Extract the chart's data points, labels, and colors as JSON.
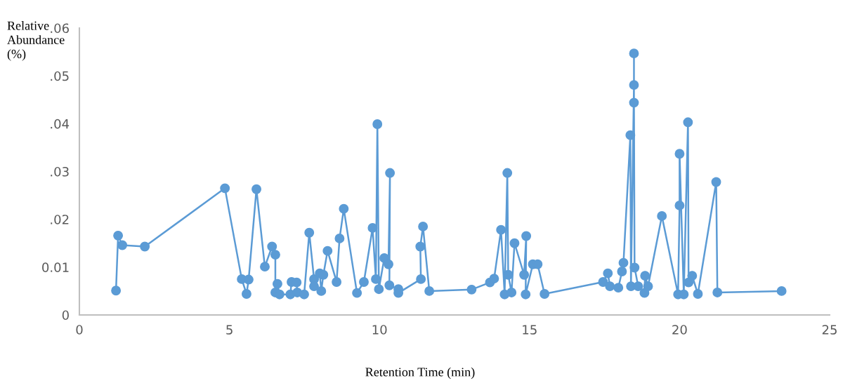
{
  "chart_data": {
    "type": "line",
    "xlabel": "Retention Time (min)",
    "ylabel": "Relative Abundance (%)",
    "x": [
      1.22,
      1.29,
      1.43,
      2.18,
      4.85,
      5.41,
      5.57,
      5.64,
      5.9,
      6.18,
      6.42,
      6.53,
      6.53,
      6.6,
      6.67,
      7.03,
      7.07,
      7.24,
      7.26,
      7.49,
      7.66,
      7.82,
      7.82,
      8.01,
      8.06,
      8.13,
      8.27,
      8.57,
      8.67,
      8.81,
      9.25,
      9.48,
      9.77,
      9.88,
      9.93,
      9.98,
      10.16,
      10.3,
      10.35,
      10.33,
      10.63,
      10.63,
      11.38,
      11.36,
      11.45,
      11.66,
      13.07,
      13.68,
      13.82,
      14.05,
      14.17,
      14.26,
      14.29,
      14.4,
      14.5,
      14.82,
      14.89,
      14.87,
      15.11,
      15.27,
      15.5,
      17.45,
      17.61,
      17.68,
      17.96,
      18.08,
      18.13,
      18.36,
      18.38,
      18.48,
      18.48,
      18.48,
      18.5,
      18.62,
      18.83,
      18.85,
      18.95,
      19.41,
      19.95,
      20.0,
      20.0,
      20.14,
      20.28,
      20.3,
      20.42,
      20.61,
      21.22,
      21.26,
      23.4
    ],
    "series": [
      {
        "color": "#5b9bd5",
        "values": [
          0.0051,
          0.0166,
          0.0146,
          0.0143,
          0.0265,
          0.0075,
          0.0044,
          0.0074,
          0.0263,
          0.0101,
          0.0143,
          0.0126,
          0.0047,
          0.0065,
          0.0043,
          0.0043,
          0.0069,
          0.0068,
          0.0047,
          0.0043,
          0.0172,
          0.0075,
          0.006,
          0.0087,
          0.005,
          0.0084,
          0.0134,
          0.0069,
          0.016,
          0.0222,
          0.0046,
          0.0069,
          0.0182,
          0.0075,
          0.0399,
          0.0054,
          0.0119,
          0.0106,
          0.0297,
          0.0062,
          0.0054,
          0.0046,
          0.0075,
          0.0143,
          0.0185,
          0.005,
          0.0053,
          0.0068,
          0.0076,
          0.0178,
          0.0043,
          0.0297,
          0.0084,
          0.0047,
          0.015,
          0.0084,
          0.0165,
          0.0043,
          0.0106,
          0.0106,
          0.0044,
          0.0069,
          0.0087,
          0.006,
          0.0057,
          0.0091,
          0.0109,
          0.0376,
          0.006,
          0.0481,
          0.0547,
          0.0444,
          0.0099,
          0.006,
          0.0046,
          0.0082,
          0.006,
          0.0207,
          0.0043,
          0.0229,
          0.0337,
          0.0043,
          0.0403,
          0.0068,
          0.0082,
          0.0044,
          0.0278,
          0.0047,
          0.005
        ]
      }
    ],
    "xlim": [
      0,
      25
    ],
    "xticks": [
      0,
      5,
      10,
      15,
      20,
      25
    ],
    "ylim": [
      0,
      0.06
    ],
    "yticks": [
      {
        "value": 0,
        "label": "0"
      },
      {
        "value": 0.01,
        "label": "0.01"
      },
      {
        "value": 0.02,
        "label": ".02"
      },
      {
        "value": 0.03,
        "label": ".03"
      },
      {
        "value": 0.04,
        "label": ".04"
      },
      {
        "value": 0.05,
        "label": ".05"
      },
      {
        "value": 0.06,
        "label": ".06"
      }
    ],
    "marker": "circle",
    "line_style": "solid",
    "grid": false,
    "legend": false
  }
}
